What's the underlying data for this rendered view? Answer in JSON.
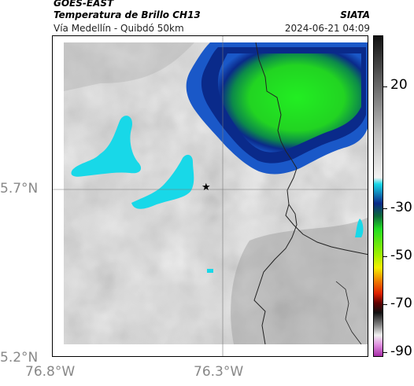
{
  "header": {
    "satellite": "GOES-EAST",
    "product": "Temperatura de Brillo CH13",
    "org": "SIATA",
    "route": "Vía Medellín - Quibdó 50km",
    "datetime": "2024-06-21 04:09"
  },
  "axes": {
    "y_labels": [
      "5.7°N",
      "5.2°N"
    ],
    "x_labels": [
      "76.8°W",
      "76.3°W"
    ]
  },
  "colorbar": {
    "tick_labels": [
      "20",
      "-30",
      "-50",
      "-70",
      "-90"
    ],
    "colors": {
      "warm_top": "#111111",
      "neutral": "#f2f2f2",
      "cyan": "#18d8e8",
      "blue": "#0a2a8a",
      "green": "#22dd22",
      "yellow": "#f4f000",
      "red": "#e02000",
      "magenta": "#c020c0"
    }
  },
  "map": {
    "marker_icon": "star-icon"
  }
}
